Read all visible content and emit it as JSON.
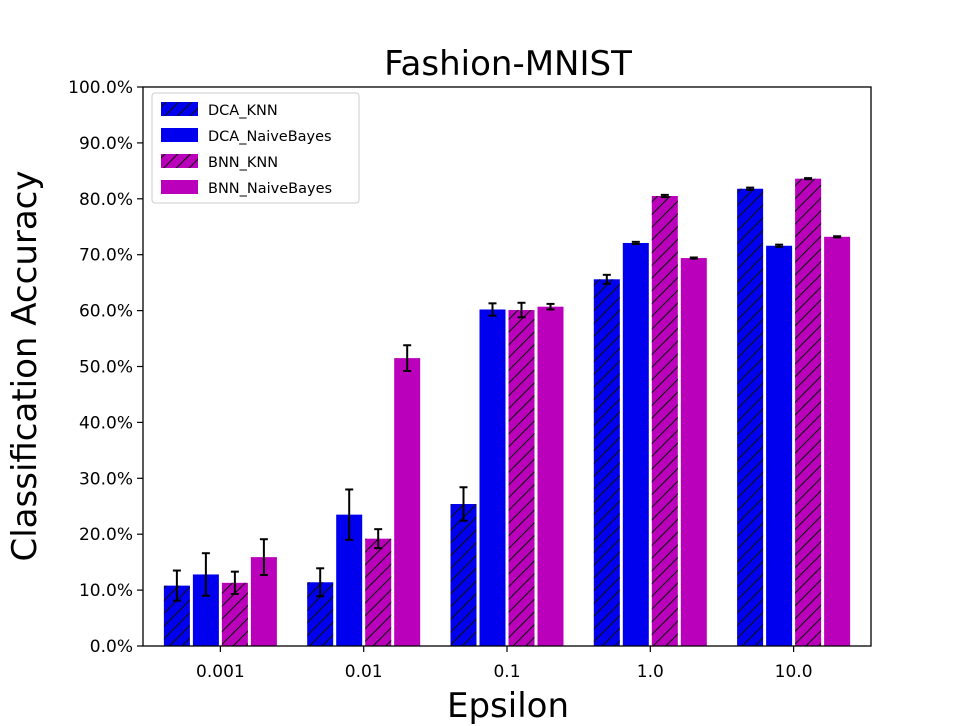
{
  "chart_data": {
    "type": "bar",
    "title": "Fashion-MNIST",
    "xlabel": "Epsilon",
    "ylabel": "Classification Accuracy",
    "categories": [
      "0.001",
      "0.01",
      "0.1",
      "1.0",
      "10.0"
    ],
    "ylim": [
      0,
      100
    ],
    "yticks": [
      0,
      10,
      20,
      30,
      40,
      50,
      60,
      70,
      80,
      90,
      100
    ],
    "ytick_labels": [
      "0.0%",
      "10.0%",
      "20.0%",
      "30.0%",
      "40.0%",
      "50.0%",
      "60.0%",
      "70.0%",
      "80.0%",
      "90.0%",
      "100.0%"
    ],
    "grid": false,
    "legend_position": "top-left",
    "series": [
      {
        "name": "DCA_KNN",
        "color": "#0000ee",
        "hatch": true,
        "values": [
          10.8,
          11.4,
          25.4,
          65.6,
          81.8
        ],
        "errors": [
          2.7,
          2.5,
          3.0,
          0.8,
          0.2
        ]
      },
      {
        "name": "DCA_NaiveBayes",
        "color": "#0000ee",
        "hatch": false,
        "values": [
          12.8,
          23.5,
          60.2,
          72.1,
          71.6
        ],
        "errors": [
          3.8,
          4.5,
          1.1,
          0.2,
          0.2
        ]
      },
      {
        "name": "BNN_KNN",
        "color": "#bb00bb",
        "hatch": true,
        "values": [
          11.3,
          19.2,
          60.1,
          80.5,
          83.6
        ],
        "errors": [
          2.0,
          1.7,
          1.3,
          0.2,
          0.1
        ]
      },
      {
        "name": "BNN_NaiveBayes",
        "color": "#bb00bb",
        "hatch": false,
        "values": [
          15.9,
          51.5,
          60.7,
          69.4,
          73.2
        ],
        "errors": [
          3.2,
          2.3,
          0.5,
          0.1,
          0.1
        ]
      }
    ]
  }
}
